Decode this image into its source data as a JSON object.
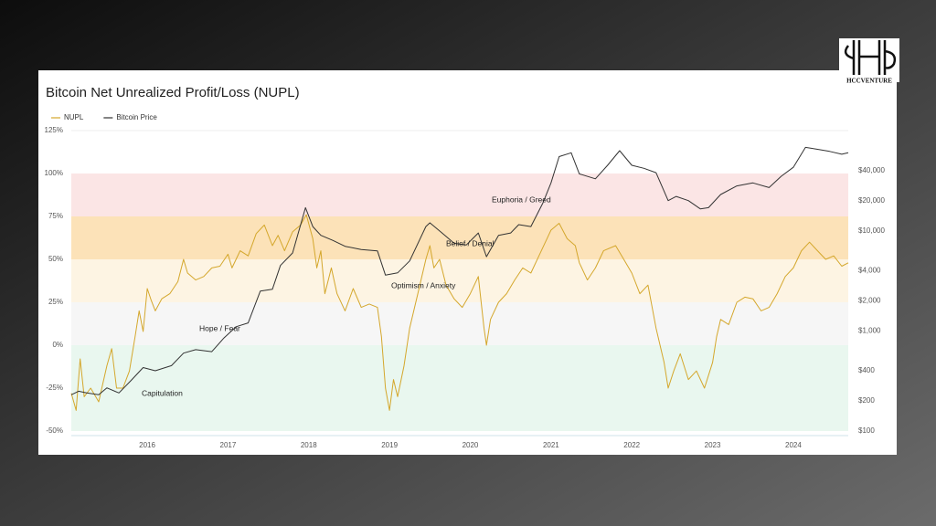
{
  "logo": "HCCVENTURE",
  "chart_data": {
    "type": "line",
    "title": "Bitcoin Net Unrealized Profit/Loss (NUPL)",
    "xlim": [
      2015.06,
      2024.68
    ],
    "xticks": [
      2016,
      2017,
      2018,
      2019,
      2020,
      2021,
      2022,
      2023,
      2024
    ],
    "ylim": [
      -50,
      125
    ],
    "yticks": [
      {
        "value": -50,
        "label": "-50%"
      },
      {
        "value": -25,
        "label": "-25%"
      },
      {
        "value": 0,
        "label": "0%"
      },
      {
        "value": 25,
        "label": "25%"
      },
      {
        "value": 50,
        "label": "50%"
      },
      {
        "value": 75,
        "label": "75%"
      },
      {
        "value": 100,
        "label": "100%"
      },
      {
        "value": 125,
        "label": "125%"
      }
    ],
    "y2lim": [
      100,
      100000
    ],
    "y2log": true,
    "y2ticks": [
      {
        "value": 100,
        "label": "$100"
      },
      {
        "value": 200,
        "label": "$200"
      },
      {
        "value": 400,
        "label": "$400"
      },
      {
        "value": 1000,
        "label": "$1,000"
      },
      {
        "value": 2000,
        "label": "$2,000"
      },
      {
        "value": 4000,
        "label": "$4,000"
      },
      {
        "value": 10000,
        "label": "$10,000"
      },
      {
        "value": 20000,
        "label": "$20,000"
      },
      {
        "value": 40000,
        "label": "$40,000"
      }
    ],
    "zones": [
      {
        "label": "Capitulation",
        "from": -50,
        "to": 0,
        "color": "#e9f7ef"
      },
      {
        "label": "Hope / Fear",
        "from": 0,
        "to": 25,
        "color": "#f6f6f6"
      },
      {
        "label": "Optimism / Anxiety",
        "from": 25,
        "to": 50,
        "color": "#fdf4e3"
      },
      {
        "label": "Belief / Denial",
        "from": 50,
        "to": 75,
        "color": "#fce2b8"
      },
      {
        "label": "Euphoria / Greed",
        "from": 75,
        "to": 100,
        "color": "#fbe5e5"
      }
    ],
    "legend": "top-left",
    "series": [
      {
        "name": "NUPL",
        "color": "#d4a72c",
        "x": [
          2015.06,
          2015.12,
          2015.17,
          2015.22,
          2015.3,
          2015.4,
          2015.5,
          2015.56,
          2015.62,
          2015.7,
          2015.78,
          2015.85,
          2015.9,
          2015.95,
          2016.0,
          2016.05,
          2016.1,
          2016.18,
          2016.28,
          2016.38,
          2016.45,
          2016.5,
          2016.6,
          2016.7,
          2016.8,
          2016.9,
          2017.0,
          2017.05,
          2017.15,
          2017.25,
          2017.35,
          2017.45,
          2017.55,
          2017.62,
          2017.7,
          2017.8,
          2017.9,
          2017.97,
          2018.05,
          2018.1,
          2018.15,
          2018.2,
          2018.28,
          2018.35,
          2018.45,
          2018.55,
          2018.65,
          2018.75,
          2018.85,
          2018.9,
          2018.95,
          2019.0,
          2019.05,
          2019.1,
          2019.18,
          2019.25,
          2019.35,
          2019.45,
          2019.5,
          2019.55,
          2019.62,
          2019.7,
          2019.8,
          2019.9,
          2020.0,
          2020.1,
          2020.17,
          2020.2,
          2020.25,
          2020.35,
          2020.45,
          2020.55,
          2020.65,
          2020.75,
          2020.85,
          2020.95,
          2021.0,
          2021.1,
          2021.2,
          2021.3,
          2021.35,
          2021.45,
          2021.55,
          2021.65,
          2021.8,
          2021.9,
          2022.0,
          2022.1,
          2022.2,
          2022.3,
          2022.4,
          2022.45,
          2022.52,
          2022.6,
          2022.7,
          2022.8,
          2022.9,
          2023.0,
          2023.05,
          2023.1,
          2023.2,
          2023.3,
          2023.4,
          2023.5,
          2023.6,
          2023.7,
          2023.8,
          2023.9,
          2024.0,
          2024.1,
          2024.2,
          2024.3,
          2024.4,
          2024.5,
          2024.6,
          2024.68
        ],
        "values": [
          -28,
          -38,
          -8,
          -30,
          -25,
          -33,
          -12,
          -2,
          -25,
          -25,
          -15,
          5,
          20,
          8,
          33,
          26,
          20,
          27,
          30,
          37,
          50,
          42,
          38,
          40,
          45,
          46,
          53,
          45,
          55,
          52,
          65,
          70,
          58,
          64,
          55,
          66,
          70,
          76,
          62,
          45,
          55,
          30,
          45,
          30,
          20,
          33,
          22,
          24,
          22,
          5,
          -25,
          -38,
          -20,
          -30,
          -12,
          10,
          30,
          50,
          58,
          45,
          50,
          35,
          27,
          22,
          30,
          40,
          10,
          0,
          15,
          25,
          30,
          38,
          45,
          42,
          52,
          62,
          67,
          71,
          62,
          58,
          48,
          38,
          45,
          55,
          58,
          50,
          42,
          30,
          35,
          10,
          -10,
          -25,
          -15,
          -5,
          -20,
          -15,
          -25,
          -10,
          5,
          15,
          12,
          25,
          28,
          27,
          20,
          22,
          30,
          40,
          45,
          55,
          60,
          55,
          50,
          52,
          46,
          48
        ]
      },
      {
        "name": "Bitcoin Price",
        "color": "#333333",
        "axis": "y2",
        "x": [
          2015.06,
          2015.15,
          2015.25,
          2015.4,
          2015.5,
          2015.65,
          2015.8,
          2015.95,
          2016.1,
          2016.3,
          2016.45,
          2016.6,
          2016.8,
          2016.95,
          2017.1,
          2017.25,
          2017.4,
          2017.55,
          2017.65,
          2017.8,
          2017.96,
          2018.05,
          2018.15,
          2018.3,
          2018.45,
          2018.65,
          2018.85,
          2018.95,
          2019.1,
          2019.25,
          2019.45,
          2019.5,
          2019.65,
          2019.8,
          2019.95,
          2020.1,
          2020.2,
          2020.35,
          2020.5,
          2020.6,
          2020.75,
          2020.9,
          2021.0,
          2021.1,
          2021.25,
          2021.35,
          2021.55,
          2021.7,
          2021.85,
          2022.0,
          2022.15,
          2022.3,
          2022.45,
          2022.55,
          2022.7,
          2022.85,
          2022.95,
          2023.1,
          2023.3,
          2023.5,
          2023.7,
          2023.85,
          2024.0,
          2024.15,
          2024.3,
          2024.45,
          2024.6,
          2024.68
        ],
        "values": [
          230,
          250,
          240,
          230,
          270,
          240,
          320,
          430,
          400,
          450,
          600,
          650,
          620,
          850,
          1100,
          1200,
          2500,
          2600,
          4500,
          6000,
          17000,
          11000,
          9000,
          8000,
          7000,
          6500,
          6300,
          3600,
          3800,
          5000,
          11000,
          12000,
          9500,
          7500,
          7200,
          9500,
          5500,
          9000,
          9500,
          11500,
          11000,
          19000,
          30000,
          55000,
          60000,
          37000,
          33000,
          45000,
          63000,
          45000,
          42000,
          38000,
          20000,
          22000,
          20000,
          16500,
          17000,
          23000,
          28000,
          30000,
          27000,
          35000,
          43000,
          68000,
          65000,
          62000,
          58000,
          60000
        ]
      }
    ]
  }
}
